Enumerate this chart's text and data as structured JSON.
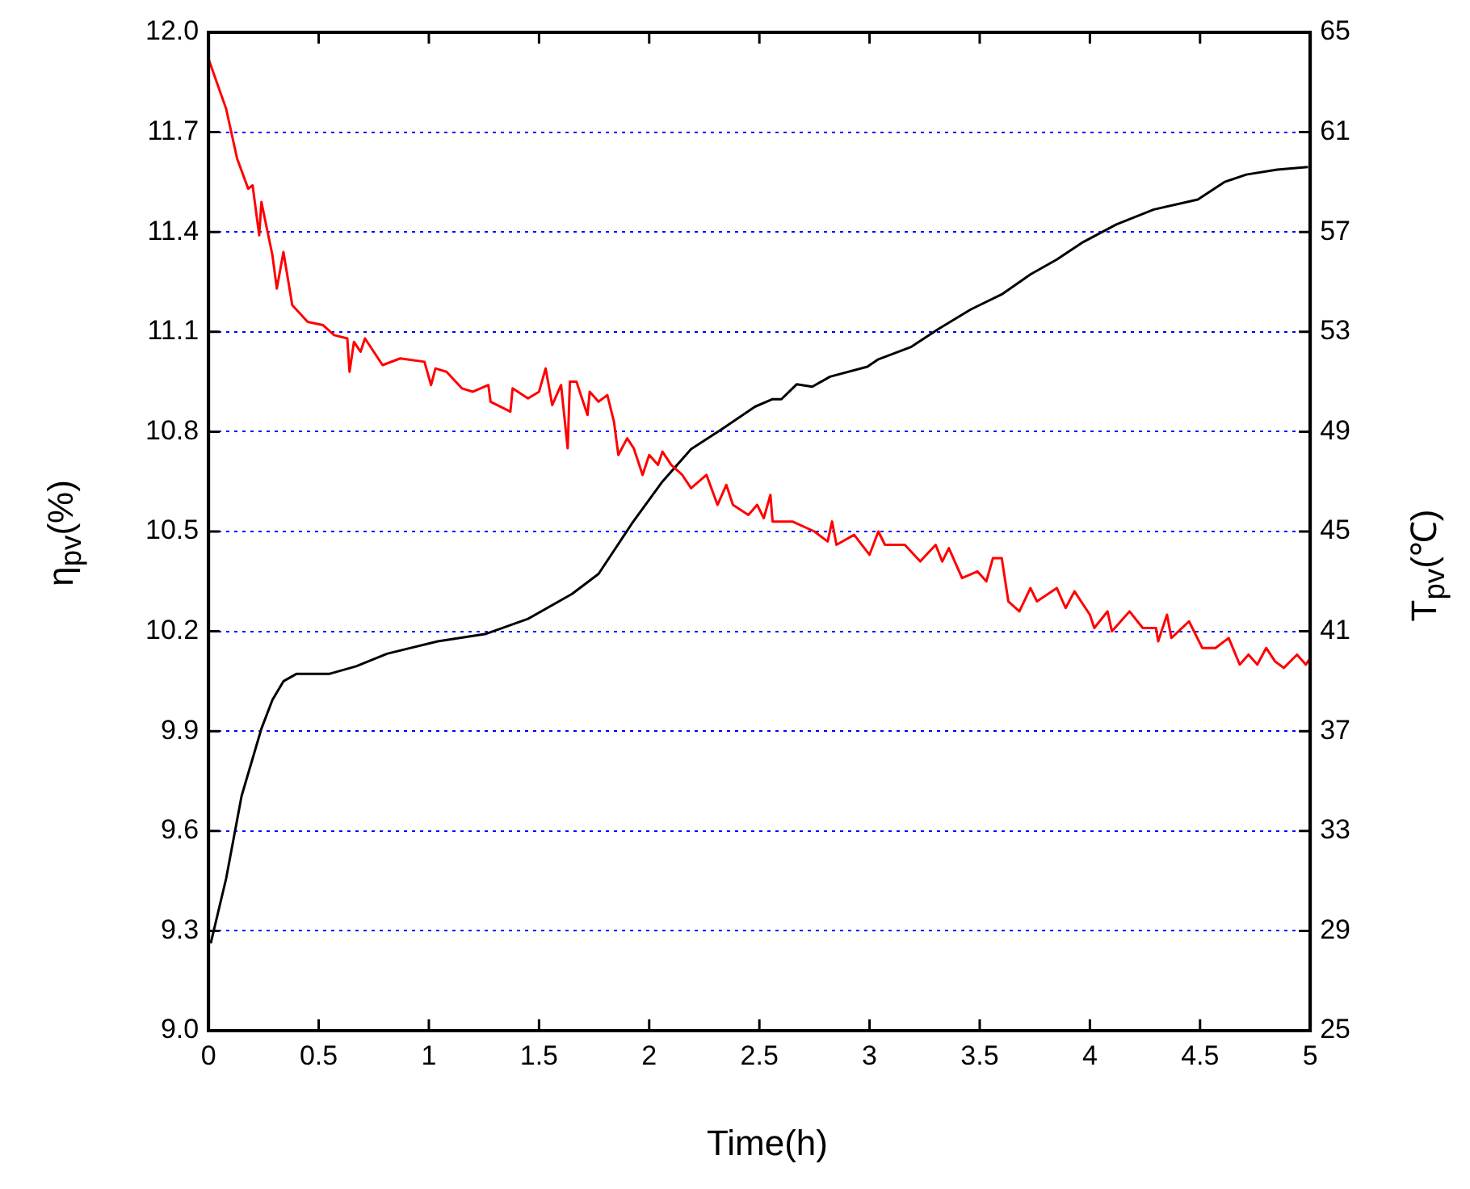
{
  "chart_data": {
    "type": "line",
    "xlabel": "Time(h)",
    "ylabel": "η$_{pv}$(%)",
    "y2label": "T$_{pv}$(℃)",
    "xlim": [
      0,
      5
    ],
    "xticks": [
      0,
      0.5,
      1,
      1.5,
      2,
      2.5,
      3,
      3.5,
      4,
      4.5,
      5
    ],
    "ylim": [
      9.0,
      12.0
    ],
    "yticks": [
      {
        "value": 9.0,
        "label": "9.0"
      },
      {
        "value": 9.3,
        "label": "9.3"
      },
      {
        "value": 9.6,
        "label": "9.6"
      },
      {
        "value": 9.9,
        "label": "9.9"
      },
      {
        "value": 10.2,
        "label": "10.2"
      },
      {
        "value": 10.5,
        "label": "10.5"
      },
      {
        "value": 10.8,
        "label": "10.8"
      },
      {
        "value": 11.1,
        "label": "11.1"
      },
      {
        "value": 11.4,
        "label": "11.4"
      },
      {
        "value": 11.7,
        "label": "11.7"
      },
      {
        "value": 12.0,
        "label": "12.0"
      }
    ],
    "y2lim": [
      25,
      65
    ],
    "y2ticks": [
      25,
      29,
      33,
      37,
      41,
      45,
      49,
      53,
      57,
      61,
      65
    ],
    "grid": "y",
    "legend": false,
    "marker": "none",
    "line_style": "solid",
    "series": [
      {
        "color": "#ff0000",
        "x": [
          0,
          0.08,
          0.13,
          0.18,
          0.2,
          0.23,
          0.24,
          0.29,
          0.31,
          0.34,
          0.38,
          0.45,
          0.52,
          0.57,
          0.63,
          0.64,
          0.66,
          0.69,
          0.71,
          0.79,
          0.87,
          0.98,
          1.01,
          1.03,
          1.08,
          1.15,
          1.2,
          1.27,
          1.28,
          1.37,
          1.38,
          1.45,
          1.5,
          1.53,
          1.56,
          1.6,
          1.63,
          1.64,
          1.67,
          1.72,
          1.73,
          1.77,
          1.81,
          1.84,
          1.86,
          1.9,
          1.93,
          1.97,
          2.0,
          2.04,
          2.06,
          2.1,
          2.15,
          2.19,
          2.26,
          2.31,
          2.35,
          2.38,
          2.45,
          2.49,
          2.52,
          2.55,
          2.56,
          2.65,
          2.75,
          2.81,
          2.83,
          2.85,
          2.93,
          3.0,
          3.04,
          3.07,
          3.16,
          3.23,
          3.3,
          3.33,
          3.36,
          3.42,
          3.49,
          3.53,
          3.56,
          3.6,
          3.63,
          3.68,
          3.73,
          3.76,
          3.85,
          3.89,
          3.93,
          4.0,
          4.02,
          4.08,
          4.1,
          4.18,
          4.24,
          4.3,
          4.31,
          4.35,
          4.37,
          4.45,
          4.51,
          4.57,
          4.63,
          4.68,
          4.72,
          4.76,
          4.8,
          4.84,
          4.88,
          4.94,
          4.98,
          5.0
        ],
        "values": [
          11.92,
          11.77,
          11.62,
          11.53,
          11.54,
          11.39,
          11.49,
          11.33,
          11.23,
          11.34,
          11.18,
          11.13,
          11.12,
          11.09,
          11.08,
          10.98,
          11.07,
          11.04,
          11.08,
          11.0,
          11.02,
          11.01,
          10.94,
          10.99,
          10.98,
          10.93,
          10.92,
          10.94,
          10.89,
          10.86,
          10.93,
          10.9,
          10.92,
          10.99,
          10.88,
          10.94,
          10.75,
          10.95,
          10.95,
          10.85,
          10.92,
          10.89,
          10.91,
          10.83,
          10.73,
          10.78,
          10.75,
          10.67,
          10.73,
          10.7,
          10.74,
          10.7,
          10.67,
          10.63,
          10.67,
          10.58,
          10.64,
          10.58,
          10.55,
          10.58,
          10.54,
          10.61,
          10.53,
          10.53,
          10.5,
          10.47,
          10.53,
          10.46,
          10.49,
          10.43,
          10.5,
          10.46,
          10.46,
          10.41,
          10.46,
          10.41,
          10.45,
          10.36,
          10.38,
          10.35,
          10.42,
          10.42,
          10.29,
          10.26,
          10.33,
          10.29,
          10.33,
          10.27,
          10.32,
          10.25,
          10.21,
          10.26,
          10.2,
          10.26,
          10.21,
          10.21,
          10.17,
          10.25,
          10.18,
          10.23,
          10.15,
          10.15,
          10.18,
          10.1,
          10.13,
          10.1,
          10.15,
          10.11,
          10.09,
          10.13,
          10.1,
          10.12
        ]
      },
      {
        "color": "#000000",
        "axis": "y2",
        "x": [
          0.01,
          0.08,
          0.15,
          0.24,
          0.29,
          0.34,
          0.4,
          0.55,
          0.67,
          0.81,
          1.04,
          1.26,
          1.45,
          1.65,
          1.77,
          1.89,
          1.92,
          2.06,
          2.19,
          2.33,
          2.48,
          2.56,
          2.6,
          2.67,
          2.74,
          2.82,
          2.99,
          3.04,
          3.19,
          3.31,
          3.46,
          3.6,
          3.73,
          3.85,
          3.97,
          4.12,
          4.29,
          4.49,
          4.61,
          4.71,
          4.85,
          4.99
        ],
        "values": [
          28.5,
          31.1,
          34.4,
          37.1,
          38.25,
          39.0,
          39.3,
          39.3,
          39.6,
          40.1,
          40.6,
          40.9,
          41.5,
          42.5,
          43.3,
          44.9,
          45.3,
          47.0,
          48.3,
          49.1,
          50.0,
          50.3,
          50.3,
          50.9,
          50.8,
          51.2,
          51.6,
          51.9,
          52.4,
          53.1,
          53.9,
          54.5,
          55.3,
          55.9,
          56.6,
          57.3,
          57.9,
          58.3,
          59.0,
          59.3,
          59.5,
          59.6
        ]
      }
    ]
  }
}
